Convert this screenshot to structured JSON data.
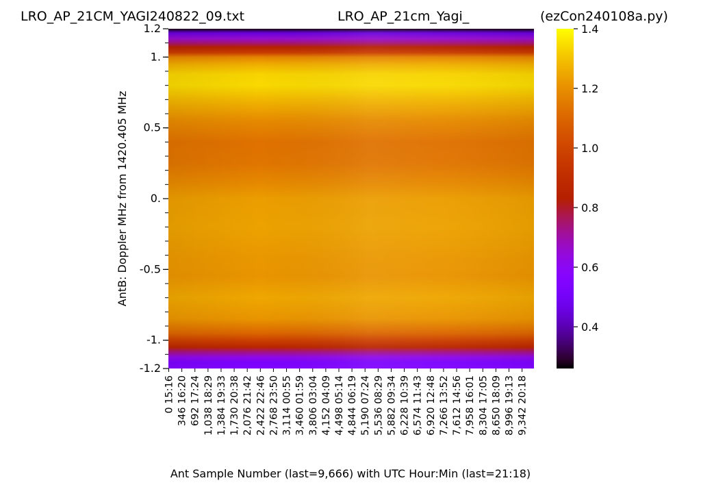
{
  "titles": {
    "left": "LRO_AP_21CM_YAGI240822_09.txt",
    "center": "LRO_AP_21cm_Yagi_",
    "right": "(ezCon240108a.py)"
  },
  "chart_data": {
    "type": "heatmap",
    "colormap": "gnuplot",
    "xlabel": "Ant Sample Number (last=9,666) with UTC Hour:Min (last=21:18)",
    "ylabel": "AntB:  Doppler MHz from 1420.405 MHz",
    "ylim": [
      -1.2,
      1.2
    ],
    "y_tick_labels": [
      {
        "value": 1.2,
        "label": "1.2"
      },
      {
        "value": 1.0,
        "label": "1."
      },
      {
        "value": 0.5,
        "label": "0.5"
      },
      {
        "value": 0.0,
        "label": "0."
      },
      {
        "value": -0.5,
        "label": "-0.5"
      },
      {
        "value": -1.0,
        "label": "-1."
      },
      {
        "value": -1.2,
        "label": "-1.2"
      }
    ],
    "x_ticks": [
      {
        "sample": "0",
        "time": "15:16"
      },
      {
        "sample": "346",
        "time": "16:20"
      },
      {
        "sample": "692",
        "time": "17:24"
      },
      {
        "sample": "1,038",
        "time": "18:29"
      },
      {
        "sample": "1,384",
        "time": "19:33"
      },
      {
        "sample": "1,730",
        "time": "20:38"
      },
      {
        "sample": "2,076",
        "time": "21:42"
      },
      {
        "sample": "2,422",
        "time": "22:46"
      },
      {
        "sample": "2,768",
        "time": "23:50"
      },
      {
        "sample": "3,114",
        "time": "00:55"
      },
      {
        "sample": "3,460",
        "time": "01:59"
      },
      {
        "sample": "3,806",
        "time": "03:04"
      },
      {
        "sample": "4,152",
        "time": "04:09"
      },
      {
        "sample": "4,498",
        "time": "05:14"
      },
      {
        "sample": "4,844",
        "time": "06:19"
      },
      {
        "sample": "5,190",
        "time": "07:24"
      },
      {
        "sample": "5,536",
        "time": "08:29"
      },
      {
        "sample": "5,882",
        "time": "09:34"
      },
      {
        "sample": "6,228",
        "time": "10:39"
      },
      {
        "sample": "6,574",
        "time": "11:43"
      },
      {
        "sample": "6,920",
        "time": "12:48"
      },
      {
        "sample": "7,266",
        "time": "13:52"
      },
      {
        "sample": "7,612",
        "time": "14:56"
      },
      {
        "sample": "7,958",
        "time": "16:01"
      },
      {
        "sample": "8,304",
        "time": "17:05"
      },
      {
        "sample": "8,650",
        "time": "18:09"
      },
      {
        "sample": "8,996",
        "time": "19:13"
      },
      {
        "sample": "9,342",
        "time": "20:18"
      }
    ],
    "x_last_sample": 9666,
    "colorbar": {
      "range": [
        0.26,
        1.4
      ],
      "ticks": [
        {
          "value": 1.4,
          "label": "1.4"
        },
        {
          "value": 1.2,
          "label": "1.2"
        },
        {
          "value": 1.0,
          "label": "1.0"
        },
        {
          "value": 0.8,
          "label": "0.8"
        },
        {
          "value": 0.6,
          "label": "0.6"
        },
        {
          "value": 0.4,
          "label": "0.4"
        }
      ]
    },
    "frequency_profile": [
      {
        "y": 1.2,
        "v": 0.27
      },
      {
        "y": 1.17,
        "v": 0.45
      },
      {
        "y": 1.13,
        "v": 0.66
      },
      {
        "y": 1.1,
        "v": 0.74
      },
      {
        "y": 1.07,
        "v": 0.84
      },
      {
        "y": 1.03,
        "v": 0.97
      },
      {
        "y": 1.0,
        "v": 1.17
      },
      {
        "y": 0.95,
        "v": 1.26
      },
      {
        "y": 0.88,
        "v": 1.33
      },
      {
        "y": 0.8,
        "v": 1.34
      },
      {
        "y": 0.7,
        "v": 1.28
      },
      {
        "y": 0.55,
        "v": 1.19
      },
      {
        "y": 0.4,
        "v": 1.13
      },
      {
        "y": 0.25,
        "v": 1.14
      },
      {
        "y": 0.1,
        "v": 1.19
      },
      {
        "y": 0.0,
        "v": 1.23
      },
      {
        "y": -0.2,
        "v": 1.24
      },
      {
        "y": -0.4,
        "v": 1.22
      },
      {
        "y": -0.55,
        "v": 1.21
      },
      {
        "y": -0.7,
        "v": 1.25
      },
      {
        "y": -0.85,
        "v": 1.21
      },
      {
        "y": -0.95,
        "v": 1.1
      },
      {
        "y": -1.0,
        "v": 0.98
      },
      {
        "y": -1.05,
        "v": 0.86
      },
      {
        "y": -1.08,
        "v": 0.74
      },
      {
        "y": -1.12,
        "v": 0.62
      },
      {
        "y": -1.16,
        "v": 0.52
      },
      {
        "y": -1.2,
        "v": 0.56
      }
    ]
  }
}
